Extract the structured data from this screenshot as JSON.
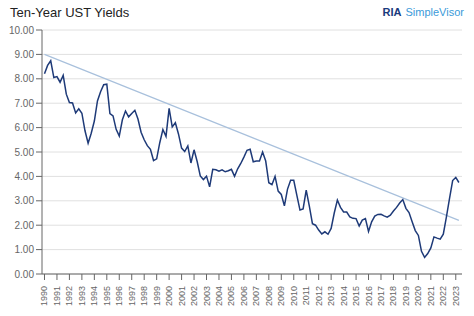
{
  "chart_data": {
    "type": "line",
    "title": "Ten-Year UST Yields",
    "annotations": [
      {
        "text": "RIA",
        "color": "#1a3a7c"
      },
      {
        "text": "SimpleVisor",
        "color": "#3a9ad9"
      }
    ],
    "series": [
      {
        "x": [
          1990.0,
          1990.25,
          1990.5,
          1990.75,
          1991.0,
          1991.25,
          1991.5,
          1991.75,
          1992.0,
          1992.25,
          1992.5,
          1992.75,
          1993.0,
          1993.25,
          1993.5,
          1993.75,
          1994.0,
          1994.25,
          1994.5,
          1994.75,
          1995.0,
          1995.25,
          1995.5,
          1995.75,
          1996.0,
          1996.25,
          1996.5,
          1996.75,
          1997.0,
          1997.25,
          1997.5,
          1997.75,
          1998.0,
          1998.25,
          1998.5,
          1998.75,
          1999.0,
          1999.25,
          1999.5,
          1999.75,
          2000.0,
          2000.25,
          2000.5,
          2000.75,
          2001.0,
          2001.25,
          2001.5,
          2001.75,
          2002.0,
          2002.25,
          2002.5,
          2002.75,
          2003.0,
          2003.25,
          2003.5,
          2003.75,
          2004.0,
          2004.25,
          2004.5,
          2004.75,
          2005.0,
          2005.25,
          2005.5,
          2005.75,
          2006.0,
          2006.25,
          2006.5,
          2006.75,
          2007.0,
          2007.25,
          2007.5,
          2007.75,
          2008.0,
          2008.25,
          2008.5,
          2008.75,
          2009.0,
          2009.25,
          2009.5,
          2009.75,
          2010.0,
          2010.25,
          2010.5,
          2010.75,
          2011.0,
          2011.25,
          2011.5,
          2011.75,
          2012.0,
          2012.25,
          2012.5,
          2012.75,
          2013.0,
          2013.25,
          2013.5,
          2013.75,
          2014.0,
          2014.25,
          2014.5,
          2014.75,
          2015.0,
          2015.25,
          2015.5,
          2015.75,
          2016.0,
          2016.25,
          2016.5,
          2016.75,
          2017.0,
          2017.25,
          2017.5,
          2017.75,
          2018.0,
          2018.25,
          2018.5,
          2018.75,
          2019.0,
          2019.25,
          2019.5,
          2019.75,
          2020.0,
          2020.25,
          2020.5,
          2020.75,
          2021.0,
          2021.25,
          2021.5,
          2021.75,
          2022.0,
          2022.25,
          2022.5,
          2022.75,
          2023.0,
          2023.25
        ],
        "values": [
          8.21,
          8.55,
          8.74,
          8.05,
          8.09,
          7.86,
          8.14,
          7.37,
          7.03,
          7.01,
          6.6,
          6.77,
          6.59,
          5.87,
          5.36,
          5.77,
          6.27,
          7.09,
          7.47,
          7.76,
          7.78,
          6.57,
          6.48,
          5.93,
          5.65,
          6.32,
          6.68,
          6.44,
          6.58,
          6.71,
          6.35,
          5.81,
          5.5,
          5.26,
          5.11,
          4.65,
          4.72,
          5.38,
          5.92,
          5.64,
          6.79,
          6.03,
          6.2,
          5.74,
          5.16,
          5.02,
          5.25,
          4.55,
          5.09,
          4.61,
          4.02,
          3.87,
          4.01,
          3.57,
          4.29,
          4.27,
          4.21,
          4.27,
          4.19,
          4.23,
          4.29,
          4.0,
          4.31,
          4.53,
          4.79,
          5.07,
          5.11,
          4.6,
          4.63,
          4.63,
          5.0,
          4.63,
          3.74,
          3.66,
          4.0,
          3.4,
          3.26,
          2.79,
          3.48,
          3.84,
          3.84,
          3.22,
          2.62,
          2.67,
          3.44,
          2.78,
          2.06,
          2.0,
          1.8,
          1.64,
          1.73,
          1.63,
          1.87,
          2.5,
          3.03,
          2.73,
          2.54,
          2.54,
          2.34,
          2.28,
          2.27,
          1.97,
          2.21,
          2.27,
          1.74,
          2.14,
          2.37,
          2.44,
          2.45,
          2.38,
          2.33,
          2.41,
          2.58,
          2.73,
          2.91,
          3.05,
          2.69,
          2.52,
          2.14,
          1.78,
          1.58,
          0.93,
          0.68,
          0.84,
          1.07,
          1.52,
          1.47,
          1.43,
          1.63,
          2.34,
          3.1,
          3.83,
          3.96,
          3.75
        ],
        "color": "#1e3a78"
      },
      {
        "x": [
          1990.0,
          2023.25
        ],
        "values": [
          9.0,
          2.2
        ],
        "color": "#a8c0dc"
      }
    ],
    "xlim": [
      1989.8,
      2023.5
    ],
    "xticks": [
      1990,
      1991,
      1992,
      1993,
      1994,
      1995,
      1996,
      1997,
      1998,
      1999,
      2000,
      2001,
      2002,
      2003,
      2004,
      2005,
      2006,
      2007,
      2008,
      2009,
      2010,
      2011,
      2012,
      2013,
      2014,
      2015,
      2016,
      2017,
      2018,
      2019,
      2020,
      2021,
      2022,
      2023
    ],
    "ylim": [
      0,
      10.0
    ],
    "yticks": [
      {
        "value": 0.0,
        "label": "0.00"
      },
      {
        "value": 1.0,
        "label": "1.00"
      },
      {
        "value": 2.0,
        "label": "2.00"
      },
      {
        "value": 3.0,
        "label": "3.00"
      },
      {
        "value": 4.0,
        "label": "4.00"
      },
      {
        "value": 5.0,
        "label": "5.00"
      },
      {
        "value": 6.0,
        "label": "6.00"
      },
      {
        "value": 7.0,
        "label": "7.00"
      },
      {
        "value": 8.0,
        "label": "8.00"
      },
      {
        "value": 9.0,
        "label": "9.00"
      },
      {
        "value": 10.0,
        "label": "10.00"
      }
    ],
    "grid": "y"
  }
}
